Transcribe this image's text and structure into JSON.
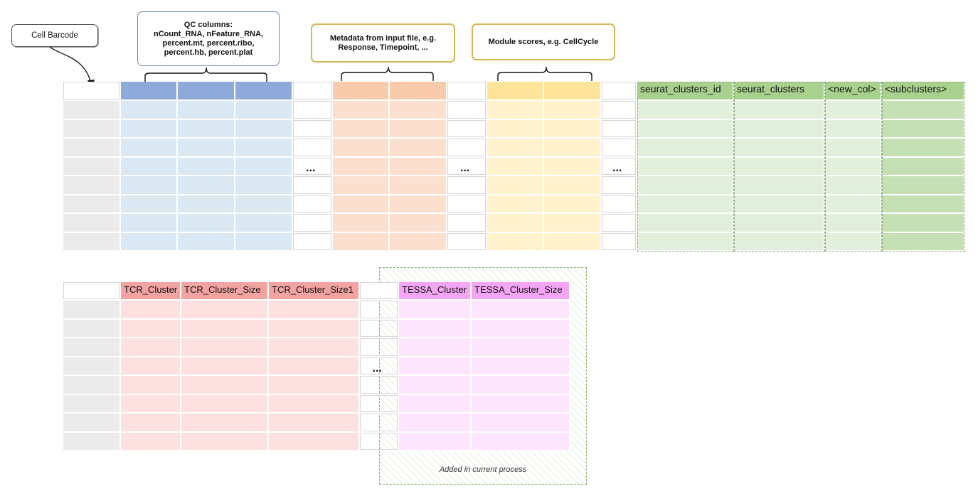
{
  "callouts": {
    "cell_barcode": "Cell Barcode",
    "qc_title": "QC columns:",
    "qc_lines": [
      "nCount_RNA, nFeature_RNA,",
      "percent.mt, percent.ribo,",
      "percent.hb, percent.plat"
    ],
    "metadata_lines": [
      "Metadata from input file, e.g.",
      "Response, Timepoint, ..."
    ],
    "module_scores": "Module scores, e.g. CellCycle"
  },
  "table1": {
    "ellipsis": "...",
    "headers": [
      "seurat_clusters_id",
      "seurat_clusters",
      "<new_col>",
      "<subclusters>"
    ]
  },
  "table2": {
    "ellipsis": "...",
    "tcr_headers": [
      "TCR_Cluster",
      "TCR_Cluster_Size",
      "TCR_Cluster_Size1"
    ],
    "tessa_headers": [
      "TESSA_Cluster",
      "TESSA_Cluster_Size"
    ],
    "added_label": "Added in current process"
  },
  "colors": {
    "gray_body": "#ebebeb",
    "blue_header": "#8eaadb",
    "blue_body": "#dae8f4",
    "orange_header": "#f8cbad",
    "orange_body": "#fbe0d0",
    "yellow_header": "#ffe599",
    "yellow_body": "#fff2cc",
    "green_header": "#a9d18e",
    "green_body": "#e2efda",
    "green_sub_body": "#c5e0b4",
    "red_header": "#f4a3a3",
    "red_body": "#fde0e0",
    "pink_header": "#f4a6f4",
    "pink_body": "#fde6fd"
  }
}
